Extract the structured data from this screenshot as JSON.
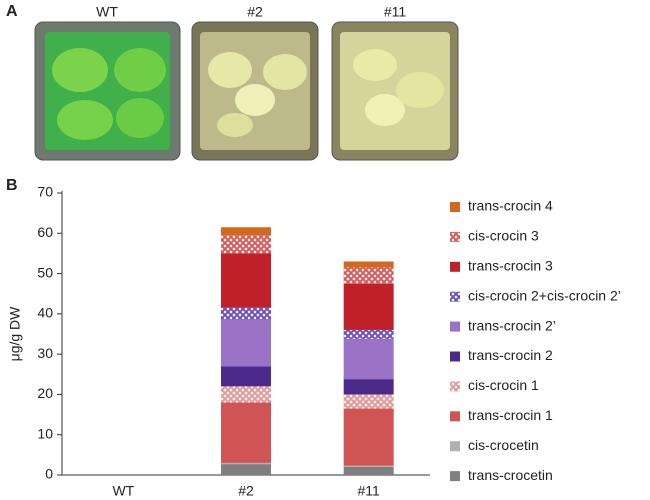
{
  "panels": {
    "a": "A",
    "b": "B"
  },
  "photos": [
    "WT",
    "#2",
    "#11"
  ],
  "chart_data": {
    "type": "stacked_bar",
    "ylabel": "μg/g DW",
    "categories": [
      "WT",
      "#2",
      "#11"
    ],
    "ylim": [
      0,
      70
    ],
    "yticks": [
      0,
      10,
      20,
      30,
      40,
      50,
      60,
      70
    ],
    "series": [
      {
        "name": "trans-crocetin",
        "color": "#7f7f7f",
        "hatch": false,
        "values": [
          0,
          2.7,
          2.0
        ]
      },
      {
        "name": "cis-crocetin",
        "color": "#b0b0b0",
        "hatch": false,
        "values": [
          0,
          0.3,
          0.3
        ]
      },
      {
        "name": "trans-crocin 1",
        "color": "#d05454",
        "hatch": false,
        "values": [
          0,
          15,
          14.2
        ]
      },
      {
        "name": "cis-crocin 1",
        "color": "#e59a9a",
        "hatch": true,
        "values": [
          0,
          4,
          3.5
        ]
      },
      {
        "name": "trans-crocin 2",
        "color": "#4b2a8c",
        "hatch": false,
        "values": [
          0,
          5,
          3.8
        ]
      },
      {
        "name": "trans-crocin 2’",
        "color": "#9a72c6",
        "hatch": false,
        "values": [
          0,
          11.5,
          10
        ]
      },
      {
        "name": "cis-crocin 2+cis-crocin 2’",
        "color": "#6a50c0",
        "hatch": true,
        "values": [
          0,
          3,
          2.2
        ]
      },
      {
        "name": "trans-crocin 3",
        "color": "#c0202a",
        "hatch": false,
        "values": [
          0,
          13.5,
          11.5
        ]
      },
      {
        "name": "cis-crocin 3",
        "color": "#d85a5a",
        "hatch": true,
        "values": [
          0,
          4.5,
          4
        ]
      },
      {
        "name": "trans-crocin 4",
        "color": "#d2691e",
        "hatch": false,
        "values": [
          0,
          2,
          1.5
        ]
      }
    ]
  }
}
